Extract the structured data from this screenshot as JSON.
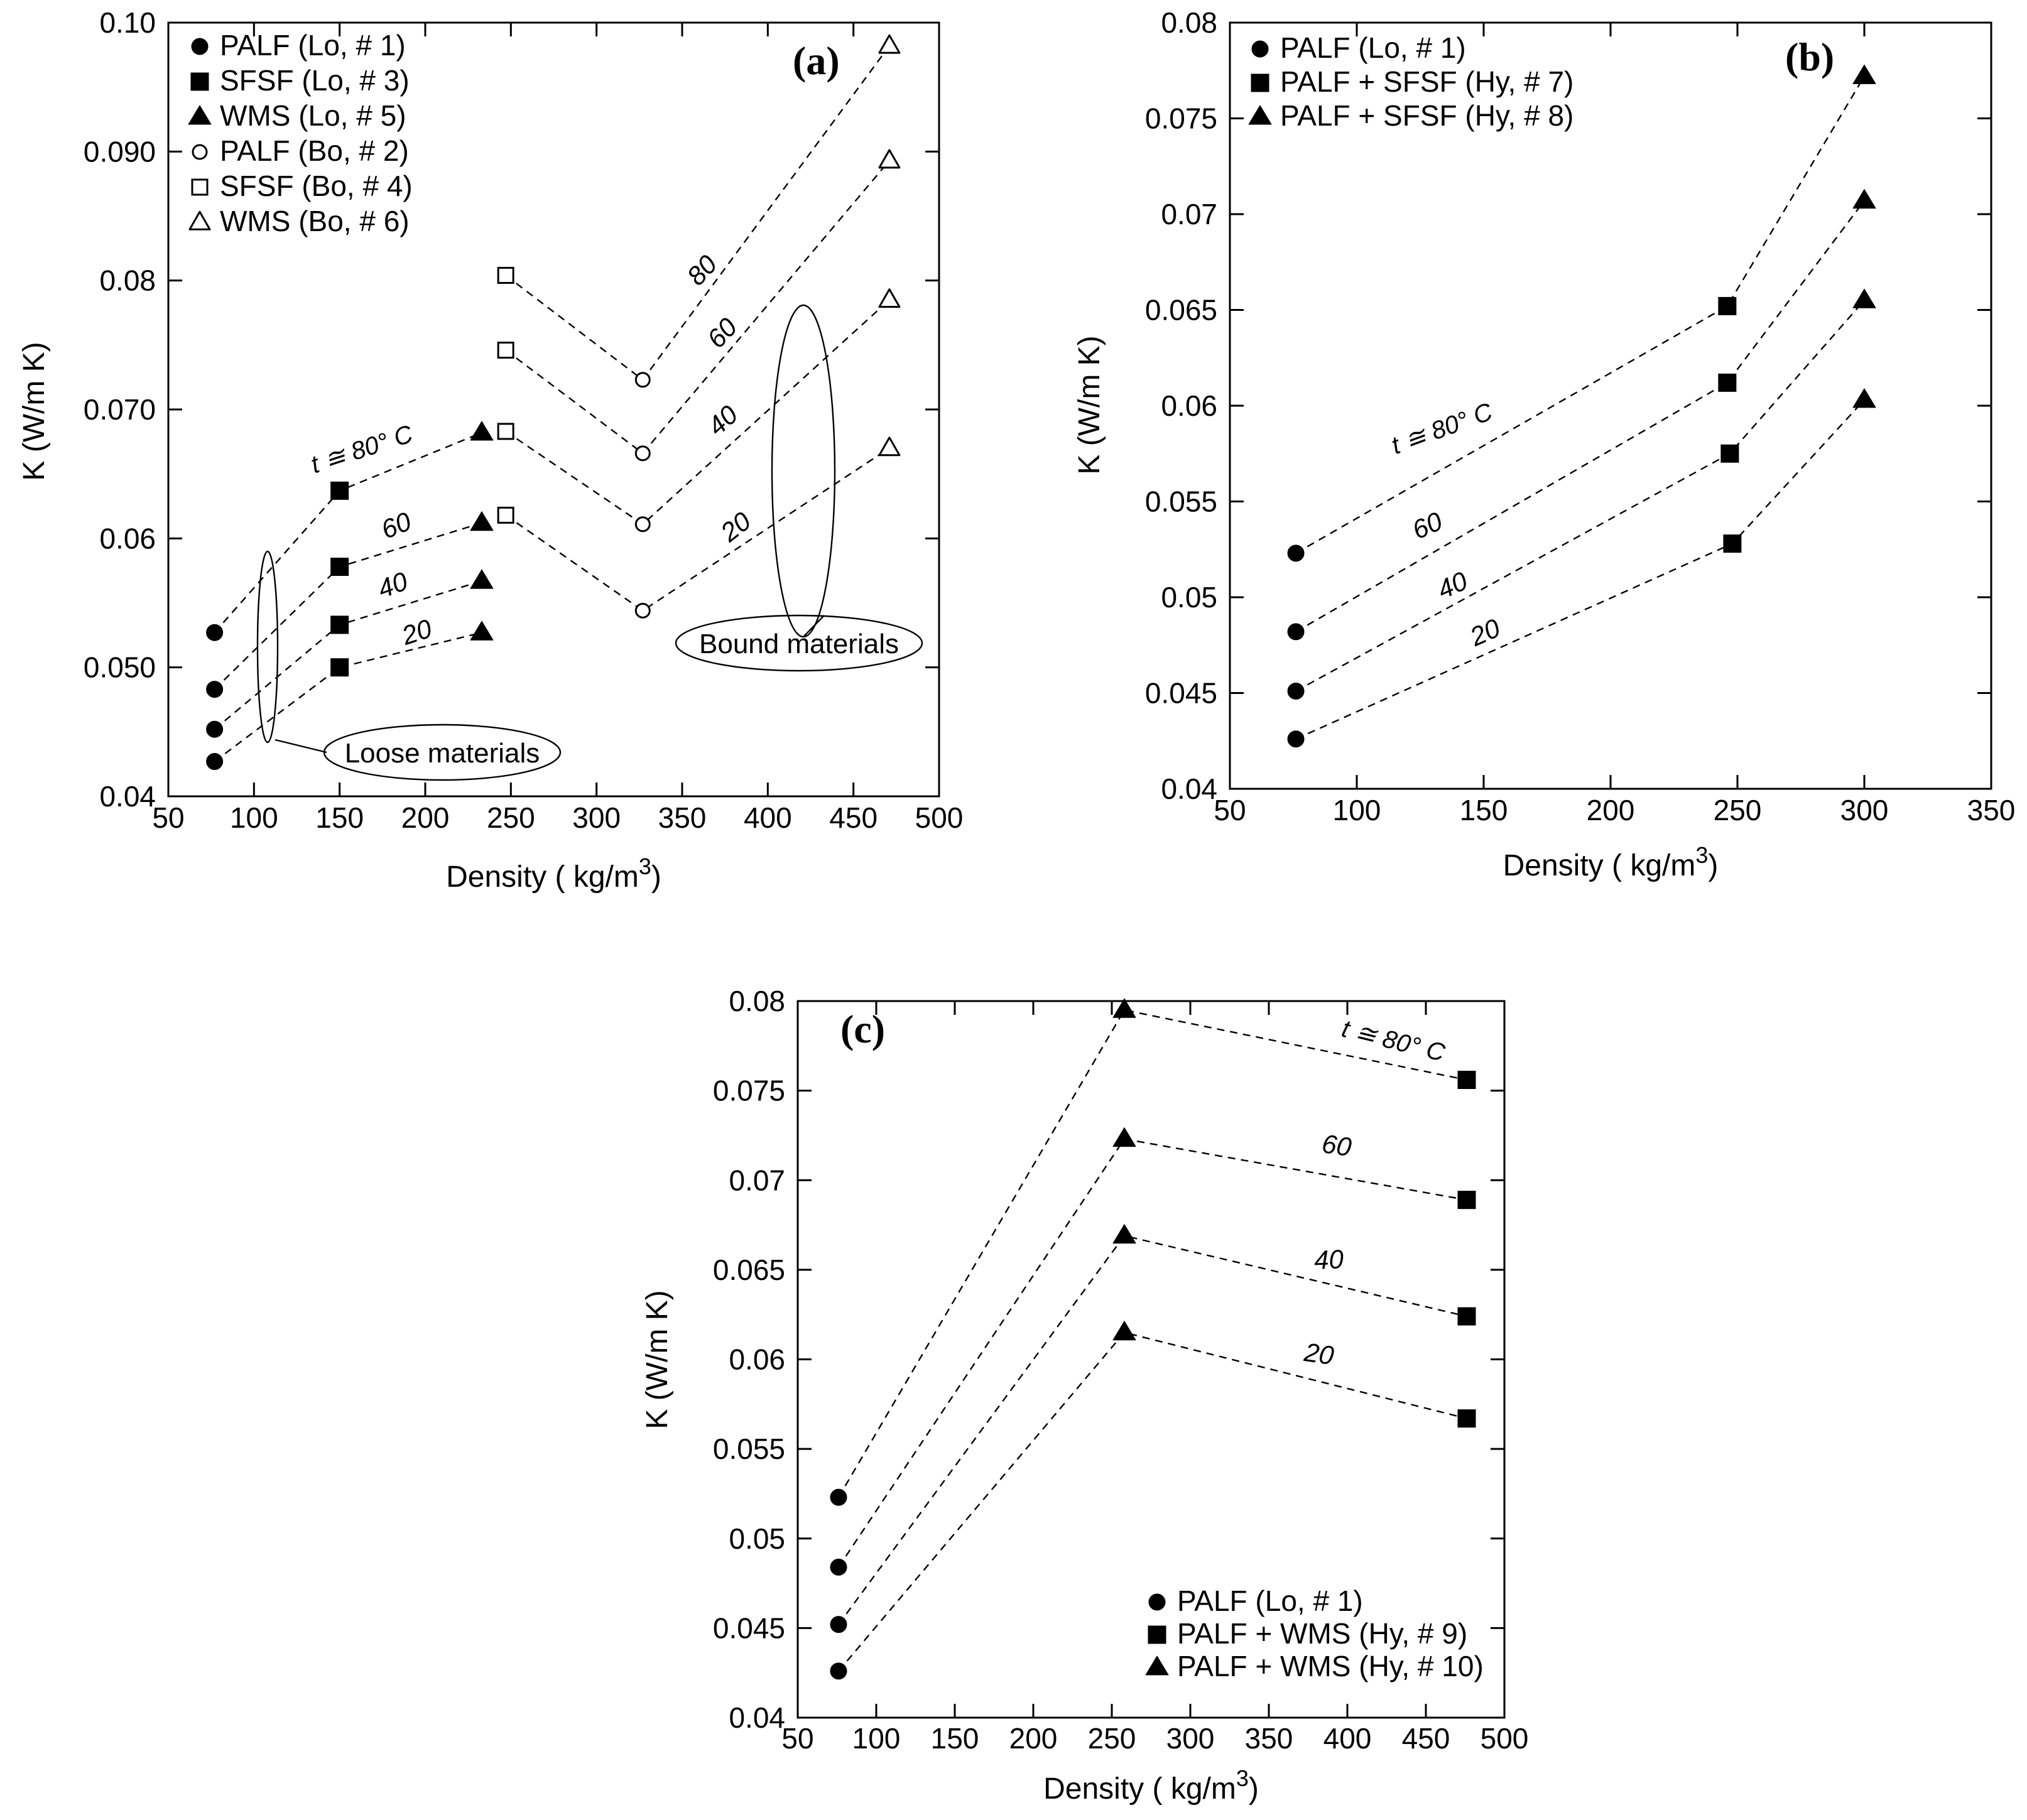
{
  "chart_data": [
    {
      "type": "scatter",
      "panel_label": "(a)",
      "xlabel": "Density ( kg/m",
      "xlabel_sup": "3",
      "xlabel_close": ")",
      "ylabel": "K (W/m K)",
      "xlim": [
        50,
        500
      ],
      "ylim": [
        0.04,
        0.1
      ],
      "xticks": [
        50,
        100,
        150,
        200,
        250,
        300,
        350,
        400,
        450,
        500
      ],
      "yticks": [
        0.04,
        0.05,
        0.06,
        0.07,
        0.08,
        0.09,
        0.1
      ],
      "ytick_labels": [
        "0.04",
        "0.050",
        "0.06",
        "0.070",
        "0.08",
        "0.090",
        "0.10"
      ],
      "series": [
        {
          "name": "PALF (Lo, # 1)",
          "marker": "circle-filled",
          "x": [
            77,
            77,
            77,
            77
          ],
          "y": [
            0.0527,
            0.0483,
            0.0452,
            0.0427
          ]
        },
        {
          "name": "SFSF (Lo, # 3)",
          "marker": "square-filled",
          "x": [
            150,
            150,
            150,
            150
          ],
          "y": [
            0.0637,
            0.0578,
            0.0533,
            0.05
          ]
        },
        {
          "name": "WMS (Lo, # 5)",
          "marker": "triangle-filled",
          "x": [
            233,
            233,
            233,
            233
          ],
          "y": [
            0.0682,
            0.0612,
            0.0567,
            0.0527
          ]
        },
        {
          "name": "PALF (Bo, # 2)",
          "marker": "circle-open",
          "x": [
            327,
            327,
            327,
            327
          ],
          "y": [
            0.0723,
            0.0666,
            0.0611,
            0.0544
          ]
        },
        {
          "name": "SFSF (Bo, # 4)",
          "marker": "square-open",
          "x": [
            247,
            247,
            247,
            247
          ],
          "y": [
            0.0804,
            0.0746,
            0.0683,
            0.0618
          ]
        },
        {
          "name": "WMS (Bo, # 6)",
          "marker": "triangle-open",
          "x": [
            471,
            471,
            471,
            471
          ],
          "y": [
            0.0982,
            0.0893,
            0.0785,
            0.067
          ]
        }
      ],
      "dashed_lines": [
        {
          "label": "t ≅ 80° C",
          "points": [
            [
              77,
              0.0527
            ],
            [
              150,
              0.0637
            ],
            [
              233,
              0.0682
            ]
          ]
        },
        {
          "label": "60",
          "points": [
            [
              77,
              0.0483
            ],
            [
              150,
              0.0578
            ],
            [
              233,
              0.0612
            ]
          ]
        },
        {
          "label": "40",
          "points": [
            [
              77,
              0.0452
            ],
            [
              150,
              0.0533
            ],
            [
              233,
              0.0567
            ]
          ]
        },
        {
          "label": "20",
          "points": [
            [
              77,
              0.0427
            ],
            [
              150,
              0.05
            ],
            [
              233,
              0.0527
            ]
          ]
        },
        {
          "label": "80",
          "points": [
            [
              247,
              0.0804
            ],
            [
              327,
              0.0723
            ],
            [
              471,
              0.0982
            ]
          ]
        },
        {
          "label": "60",
          "points": [
            [
              247,
              0.0746
            ],
            [
              327,
              0.0666
            ],
            [
              471,
              0.0893
            ]
          ]
        },
        {
          "label": "40",
          "points": [
            [
              247,
              0.0683
            ],
            [
              327,
              0.0611
            ],
            [
              471,
              0.0785
            ]
          ]
        },
        {
          "label": "20",
          "points": [
            [
              247,
              0.0618
            ],
            [
              327,
              0.0544
            ],
            [
              471,
              0.067
            ]
          ]
        }
      ],
      "annotations": [
        "Loose materials",
        "Bound materials"
      ],
      "legend_position": "top-left"
    },
    {
      "type": "scatter",
      "panel_label": "(b)",
      "xlabel": "Density ( kg/m",
      "xlabel_sup": "3",
      "xlabel_close": ")",
      "ylabel": "K (W/m K)",
      "xlim": [
        50,
        350
      ],
      "ylim": [
        0.04,
        0.08
      ],
      "xticks": [
        50,
        100,
        150,
        200,
        250,
        300,
        350
      ],
      "yticks": [
        0.04,
        0.045,
        0.05,
        0.055,
        0.06,
        0.065,
        0.07,
        0.075,
        0.08
      ],
      "ytick_labels": [
        "0.04",
        "0.045",
        "0.05",
        "0.055",
        "0.06",
        "0.065",
        "0.07",
        "0.075",
        "0.08"
      ],
      "series": [
        {
          "name": "PALF (Lo, # 1)",
          "marker": "circle-filled",
          "x": [
            76,
            76,
            76,
            76
          ],
          "y": [
            0.0523,
            0.0482,
            0.0451,
            0.0426
          ]
        },
        {
          "name": "PALF + SFSF (Hy, # 7)",
          "marker": "square-filled",
          "x": [
            246,
            246,
            247,
            248
          ],
          "y": [
            0.0652,
            0.0612,
            0.0575,
            0.0528
          ]
        },
        {
          "name": "PALF + SFSF (Hy, # 8)",
          "marker": "triangle-filled",
          "x": [
            300,
            300,
            300,
            300
          ],
          "y": [
            0.0772,
            0.0707,
            0.0655,
            0.0603
          ]
        }
      ],
      "dashed_lines": [
        {
          "label": "t ≅ 80° C",
          "points": [
            [
              76,
              0.0523
            ],
            [
              246,
              0.0652
            ],
            [
              300,
              0.0772
            ]
          ]
        },
        {
          "label": "60",
          "points": [
            [
              76,
              0.0482
            ],
            [
              246,
              0.0612
            ],
            [
              300,
              0.0707
            ]
          ]
        },
        {
          "label": "40",
          "points": [
            [
              76,
              0.0451
            ],
            [
              247,
              0.0575
            ],
            [
              300,
              0.0655
            ]
          ]
        },
        {
          "label": "20",
          "points": [
            [
              76,
              0.0426
            ],
            [
              248,
              0.0528
            ],
            [
              300,
              0.0603
            ]
          ]
        }
      ],
      "legend_position": "top-left"
    },
    {
      "type": "scatter",
      "panel_label": "(c)",
      "xlabel": "Density ( kg/m",
      "xlabel_sup": "3",
      "xlabel_close": ")",
      "ylabel": "K (W/m K)",
      "xlim": [
        50,
        500
      ],
      "ylim": [
        0.04,
        0.08
      ],
      "xticks": [
        50,
        100,
        150,
        200,
        250,
        300,
        350,
        400,
        450,
        500
      ],
      "yticks": [
        0.04,
        0.045,
        0.05,
        0.055,
        0.06,
        0.065,
        0.07,
        0.075,
        0.08
      ],
      "ytick_labels": [
        "0.04",
        "0.045",
        "0.05",
        "0.055",
        "0.06",
        "0.065",
        "0.07",
        "0.075",
        "0.08"
      ],
      "series": [
        {
          "name": "PALF (Lo, # 1)",
          "marker": "circle-filled",
          "x": [
            76,
            76,
            76,
            76
          ],
          "y": [
            0.0523,
            0.0484,
            0.0452,
            0.0426
          ]
        },
        {
          "name": "PALF + WMS (Hy, # 9)",
          "marker": "square-filled",
          "x": [
            476,
            476,
            476,
            476
          ],
          "y": [
            0.0756,
            0.0689,
            0.0624,
            0.0567
          ]
        },
        {
          "name": "PALF + WMS (Hy, # 10)",
          "marker": "triangle-filled",
          "x": [
            258,
            258,
            258,
            258
          ],
          "y": [
            0.0795,
            0.0723,
            0.0669,
            0.0615
          ]
        }
      ],
      "dashed_lines": [
        {
          "label": "t ≅ 80° C",
          "points": [
            [
              76,
              0.0523
            ],
            [
              258,
              0.0795
            ],
            [
              476,
              0.0756
            ]
          ]
        },
        {
          "label": "60",
          "points": [
            [
              76,
              0.0484
            ],
            [
              258,
              0.0723
            ],
            [
              476,
              0.0689
            ]
          ]
        },
        {
          "label": "40",
          "points": [
            [
              76,
              0.0452
            ],
            [
              258,
              0.0669
            ],
            [
              476,
              0.0624
            ]
          ]
        },
        {
          "label": "20",
          "points": [
            [
              76,
              0.0426
            ],
            [
              258,
              0.0615
            ],
            [
              476,
              0.0567
            ]
          ]
        }
      ],
      "legend_position": "bottom-right"
    }
  ]
}
